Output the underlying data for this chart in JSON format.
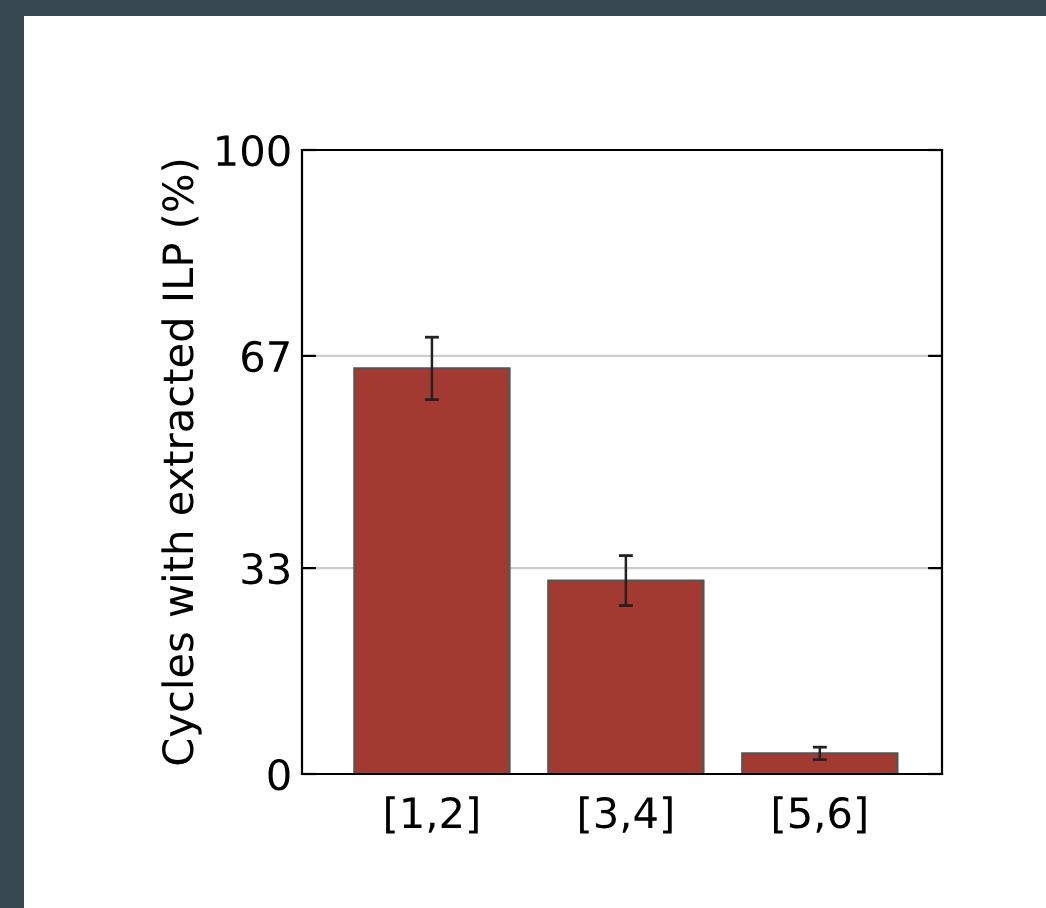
{
  "chart_data": {
    "type": "bar",
    "ylabel": "Cycles with extracted ILP (%)",
    "categories": [
      "[1,2]",
      "[3,4]",
      "[5,6]"
    ],
    "values": [
      65,
      31,
      3.3
    ],
    "errors": [
      5,
      4,
      1
    ],
    "color": "#a33a31",
    "ylim": [
      0,
      100
    ],
    "yticks": [
      0,
      33,
      67,
      100
    ],
    "grid": "y"
  }
}
